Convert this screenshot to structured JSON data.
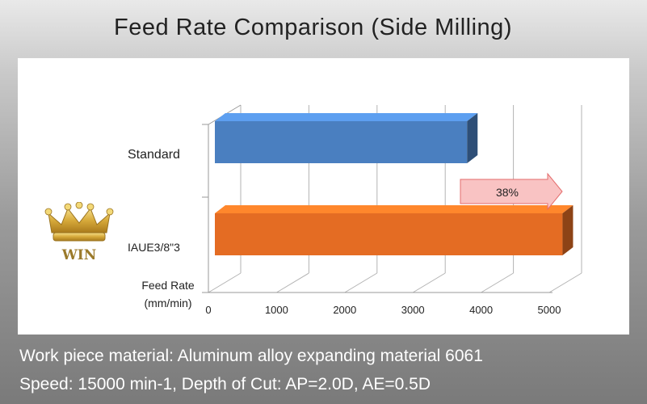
{
  "page": {
    "title": "Feed Rate Comparison (Side Milling)",
    "info_line_1": "Work piece material: Aluminum alloy expanding material 6061",
    "info_line_2": "Speed: 15000 min-1, Depth of Cut: AP=2.0D, AE=0.5D",
    "badge_label": "WIN"
  },
  "chart_data": {
    "type": "bar",
    "orientation": "horizontal",
    "style": "3d",
    "categories": [
      "Standard",
      "IAUE3/8\"3"
    ],
    "values": [
      3700,
      5100
    ],
    "bar_colors": [
      "#4a7fc0",
      "#e46c23"
    ],
    "xlabel": "Feed Rate (mm/min)",
    "xlabel_lines": [
      "Feed Rate",
      "(mm/min)"
    ],
    "xlim": [
      0,
      5000
    ],
    "xticks": [
      0,
      1000,
      2000,
      3000,
      4000,
      5000
    ],
    "grid": true,
    "annotation": {
      "text": "38%",
      "fill": "#f9c3c3",
      "stroke": "#e46c6c"
    }
  }
}
